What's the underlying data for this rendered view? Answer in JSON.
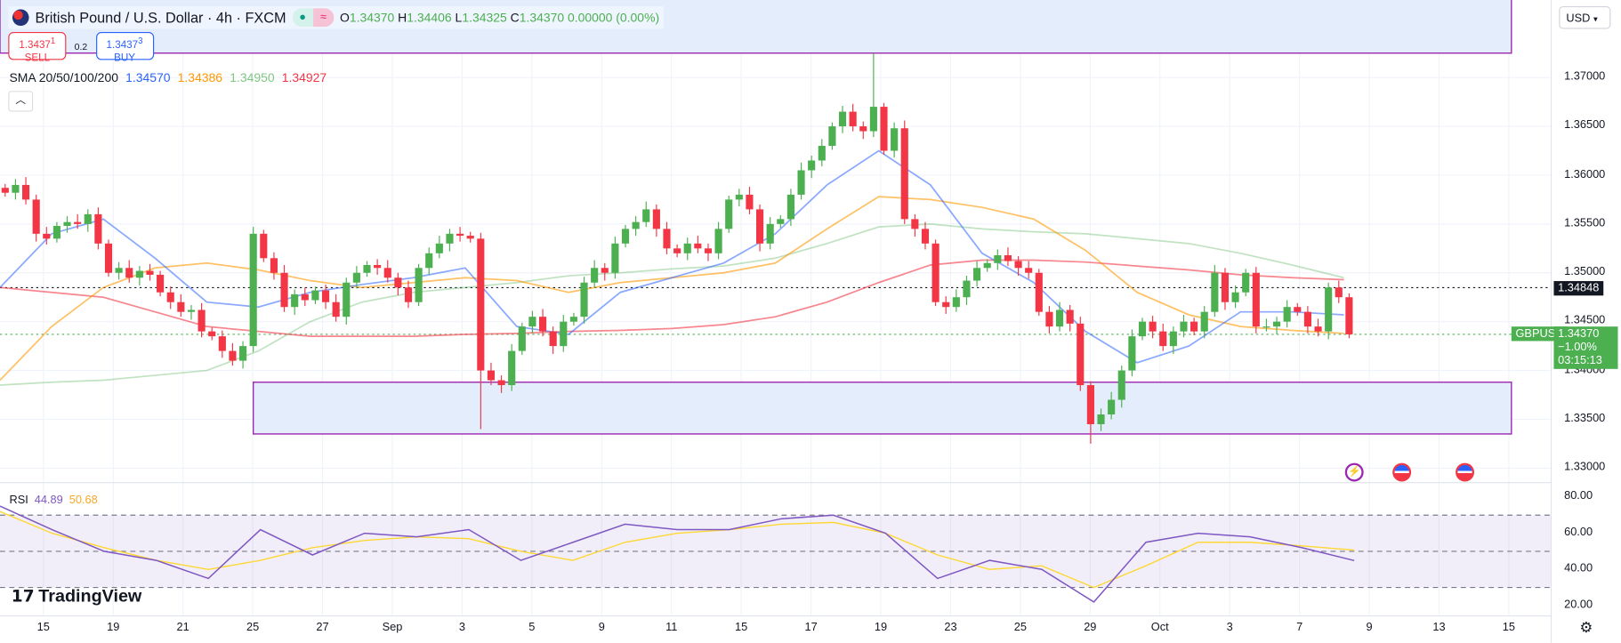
{
  "header": {
    "symbol_title": "British Pound / U.S. Dollar · 4h · FXCM",
    "ohlc": {
      "o_label": "O",
      "o": "1.34370",
      "h_label": "H",
      "h": "1.34406",
      "l_label": "L",
      "l": "1.34325",
      "c_label": "C",
      "c": "1.34370",
      "change": "0.00000 (0.00%)"
    },
    "sell": {
      "price": "1.3437",
      "pip": "1",
      "label": "SELL"
    },
    "buy": {
      "price": "1.3437",
      "pip": "3",
      "label": "BUY"
    },
    "spread": "0.2",
    "collapse_icon": "chevron-up-icon"
  },
  "sma_legend": {
    "label": "SMA 20/50/100/200",
    "v20": "1.34570",
    "v50": "1.34386",
    "v100": "1.34950",
    "v200": "1.34927"
  },
  "rsi_legend": {
    "label": "RSI",
    "value": "44.89",
    "ma": "50.68"
  },
  "currency": "USD",
  "price_axis": [
    "1.37000",
    "1.36500",
    "1.36000",
    "1.35500",
    "1.35000",
    "1.34500",
    "1.34000",
    "1.33500",
    "1.33000"
  ],
  "rsi_axis": [
    "80.00",
    "60.00",
    "40.00",
    "20.00"
  ],
  "price_tags": {
    "line": "1.34848",
    "symbol": "GBPUSD",
    "last": "1.34370",
    "change": "−1.00%",
    "countdown": "03:15:13"
  },
  "date_axis": [
    "15",
    "19",
    "21",
    "25",
    "27",
    "Sep",
    "3",
    "5",
    "9",
    "11",
    "15",
    "17",
    "19",
    "23",
    "25",
    "29",
    "Oct",
    "3",
    "7",
    "9",
    "13",
    "15"
  ],
  "brand": "TradingView",
  "colors": {
    "up": "#4caf50",
    "down": "#f23645",
    "sma20": "#2962ff",
    "sma50": "#ff9800",
    "sma100": "#4caf50",
    "sma200": "#f23645",
    "rsi": "#7e57c2",
    "rsi_ma": "#fdd835",
    "zone": "#9c27b0"
  },
  "chart_data": {
    "type": "candlestick",
    "timeframe": "4h",
    "y_range": [
      1.328,
      1.376
    ],
    "close": [
      1.3582,
      1.359,
      1.3575,
      1.354,
      1.3535,
      1.3548,
      1.3552,
      1.355,
      1.356,
      1.353,
      1.35,
      1.3505,
      1.3495,
      1.3502,
      1.3498,
      1.348,
      1.347,
      1.346,
      1.3462,
      1.344,
      1.3435,
      1.342,
      1.341,
      1.3425,
      1.354,
      1.3515,
      1.35,
      1.3465,
      1.3478,
      1.3472,
      1.3482,
      1.347,
      1.3455,
      1.349,
      1.35,
      1.3508,
      1.3505,
      1.3495,
      1.3485,
      1.347,
      1.3505,
      1.352,
      1.353,
      1.354,
      1.3538,
      1.3535,
      1.34,
      1.339,
      1.3385,
      1.342,
      1.3445,
      1.3455,
      1.344,
      1.3425,
      1.345,
      1.3455,
      1.349,
      1.3505,
      1.35,
      1.353,
      1.3545,
      1.3552,
      1.3565,
      1.3545,
      1.3525,
      1.352,
      1.353,
      1.3525,
      1.352,
      1.3545,
      1.3575,
      1.358,
      1.3565,
      1.353,
      1.355,
      1.3555,
      1.358,
      1.3605,
      1.3615,
      1.363,
      1.365,
      1.3665,
      1.365,
      1.3645,
      1.367,
      1.3625,
      1.3648,
      1.3555,
      1.3545,
      1.353,
      1.347,
      1.3465,
      1.3475,
      1.3492,
      1.3505,
      1.351,
      1.3518,
      1.3512,
      1.3505,
      1.35,
      1.346,
      1.3445,
      1.3462,
      1.3448,
      1.3385,
      1.3345,
      1.3355,
      1.337,
      1.34,
      1.3435,
      1.345,
      1.344,
      1.3425,
      1.344,
      1.345,
      1.344,
      1.346,
      1.35,
      1.347,
      1.348,
      1.35,
      1.3445,
      1.3445,
      1.345,
      1.3465,
      1.346,
      1.3445,
      1.344,
      1.3485,
      1.3475,
      1.3437
    ],
    "spikes": [
      {
        "index": 84,
        "high": 1.3725
      },
      {
        "index": 46,
        "low": 1.334
      },
      {
        "index": 105,
        "low": 1.3325
      }
    ],
    "sma20": [
      1.3485,
      1.354,
      1.3555,
      1.3515,
      1.347,
      1.3465,
      1.348,
      1.3488,
      1.3495,
      1.3505,
      1.3445,
      1.3437,
      1.348,
      1.3495,
      1.351,
      1.354,
      1.359,
      1.3625,
      1.359,
      1.352,
      1.349,
      1.344,
      1.3408,
      1.3425,
      1.346,
      1.346,
      1.3457
    ],
    "sma50": [
      1.339,
      1.3445,
      1.3485,
      1.3505,
      1.351,
      1.3503,
      1.3492,
      1.3485,
      1.349,
      1.3495,
      1.3492,
      1.348,
      1.349,
      1.3495,
      1.35,
      1.351,
      1.3545,
      1.3578,
      1.3575,
      1.3567,
      1.3555,
      1.3523,
      1.348,
      1.3457,
      1.3445,
      1.3441,
      1.3438
    ],
    "sma100": [
      1.3385,
      1.3388,
      1.339,
      1.3395,
      1.34,
      1.342,
      1.345,
      1.347,
      1.348,
      1.3485,
      1.349,
      1.3497,
      1.35,
      1.3504,
      1.3507,
      1.3515,
      1.353,
      1.3547,
      1.355,
      1.3545,
      1.3542,
      1.354,
      1.3535,
      1.353,
      1.352,
      1.3508,
      1.3495
    ],
    "sma200": [
      1.3485,
      1.348,
      1.3475,
      1.346,
      1.3445,
      1.344,
      1.3435,
      1.3435,
      1.3435,
      1.3437,
      1.3438,
      1.344,
      1.3441,
      1.3443,
      1.3447,
      1.3455,
      1.347,
      1.349,
      1.3508,
      1.3513,
      1.3513,
      1.3511,
      1.3507,
      1.3503,
      1.3498,
      1.3495,
      1.3493
    ],
    "rsi": [
      75,
      62,
      50,
      45,
      35,
      62,
      48,
      60,
      58,
      62,
      45,
      55,
      65,
      62,
      62,
      68,
      70,
      60,
      35,
      45,
      40,
      22,
      55,
      60,
      58,
      52,
      44.89
    ],
    "rsi_ma": [
      72,
      60,
      52,
      45,
      40,
      45,
      52,
      56,
      58,
      57,
      50,
      45,
      55,
      60,
      62,
      65,
      66,
      60,
      48,
      40,
      42,
      30,
      42,
      55,
      55,
      53,
      50.68
    ],
    "rsi_levels": [
      70,
      50,
      30
    ],
    "zones": [
      {
        "top": 1.376,
        "bottom": 1.3725
      },
      {
        "top": 1.3388,
        "bottom": 1.3335
      }
    ]
  }
}
